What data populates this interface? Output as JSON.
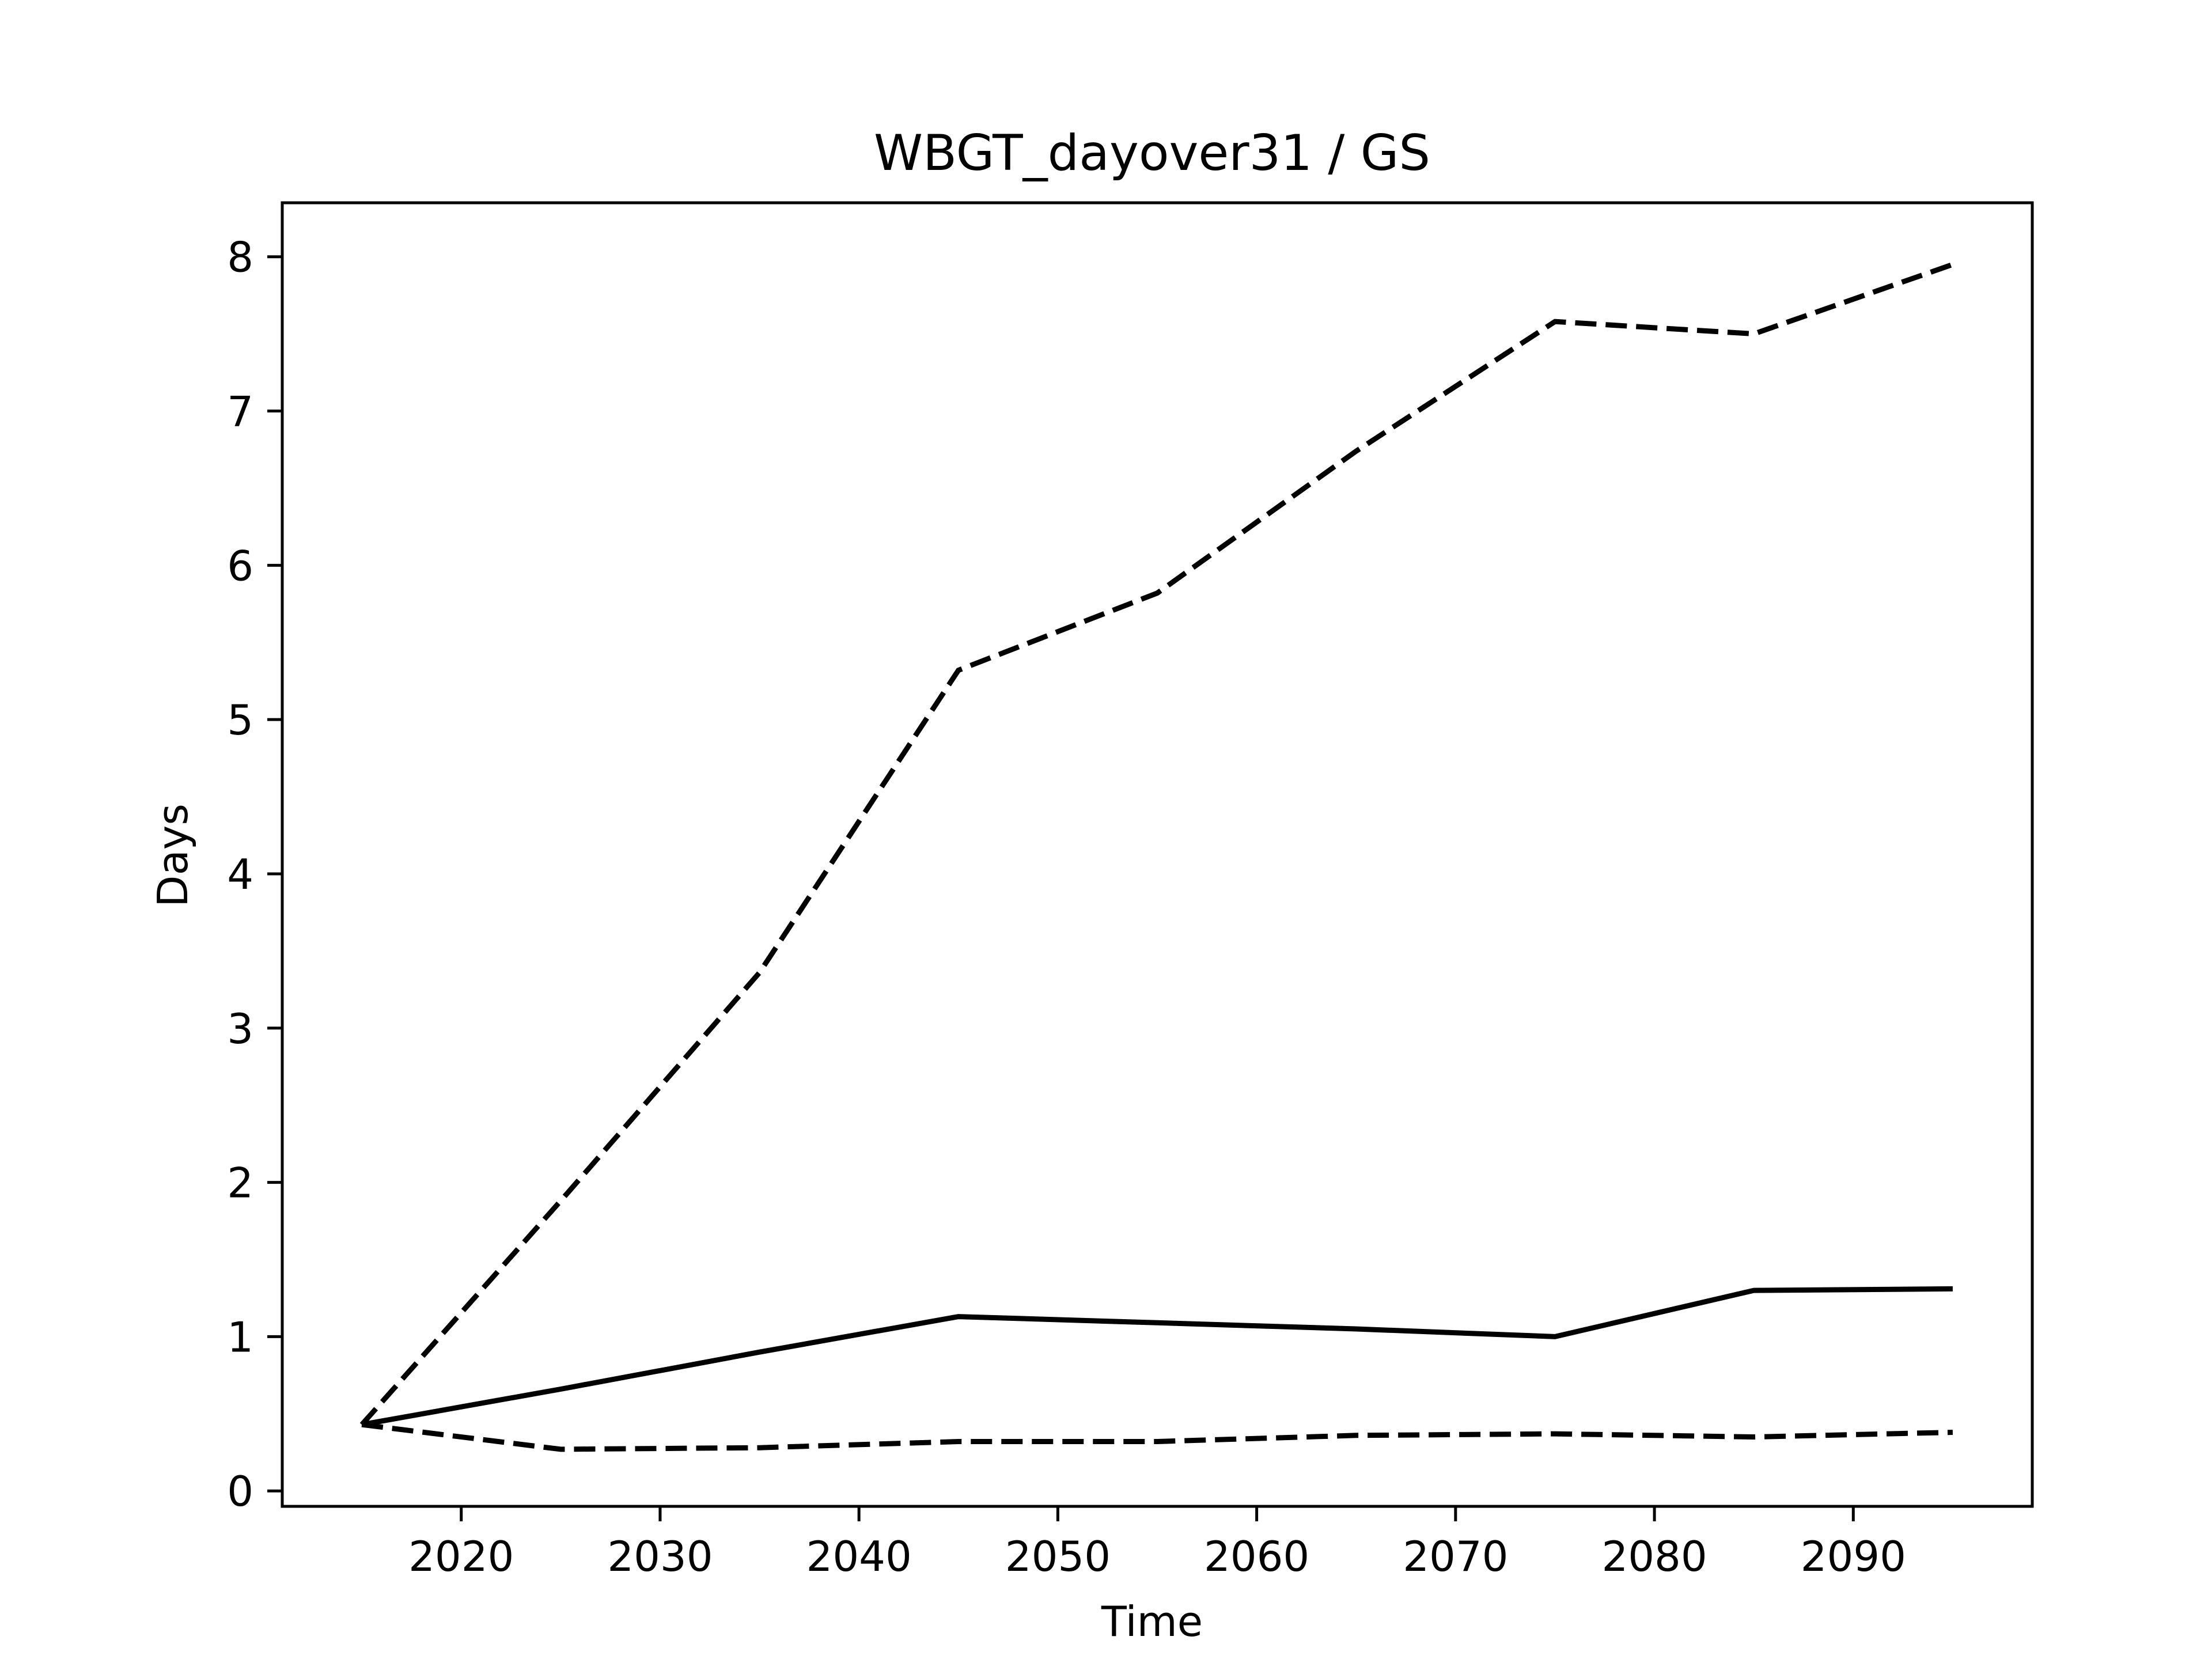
{
  "chart_data": {
    "type": "line",
    "title": "WBGT_dayover31 / GS",
    "xlabel": "Time",
    "ylabel": "Days",
    "xlim": [
      2011,
      2099
    ],
    "ylim": [
      -0.1,
      8.35
    ],
    "xticks": [
      2020,
      2030,
      2040,
      2050,
      2060,
      2070,
      2080,
      2090
    ],
    "yticks": [
      0,
      1,
      2,
      3,
      4,
      5,
      6,
      7,
      8
    ],
    "grid": false,
    "series": [
      {
        "style": "solid",
        "color": "#000000",
        "x": [
          2015,
          2025,
          2035,
          2045,
          2055,
          2065,
          2075,
          2085,
          2095
        ],
        "y": [
          0.43,
          0.66,
          0.9,
          1.13,
          1.09,
          1.05,
          1.0,
          1.3,
          1.31
        ]
      },
      {
        "style": "dashed",
        "color": "#000000",
        "x": [
          2015,
          2025,
          2035,
          2045,
          2055,
          2065,
          2075,
          2085,
          2095
        ],
        "y": [
          0.43,
          1.88,
          3.36,
          5.32,
          5.82,
          6.74,
          7.58,
          7.5,
          7.95
        ]
      },
      {
        "style": "dashed",
        "color": "#000000",
        "x": [
          2015,
          2025,
          2035,
          2045,
          2055,
          2065,
          2075,
          2085,
          2095
        ],
        "y": [
          0.43,
          0.27,
          0.28,
          0.32,
          0.32,
          0.36,
          0.37,
          0.35,
          0.38
        ]
      }
    ]
  }
}
